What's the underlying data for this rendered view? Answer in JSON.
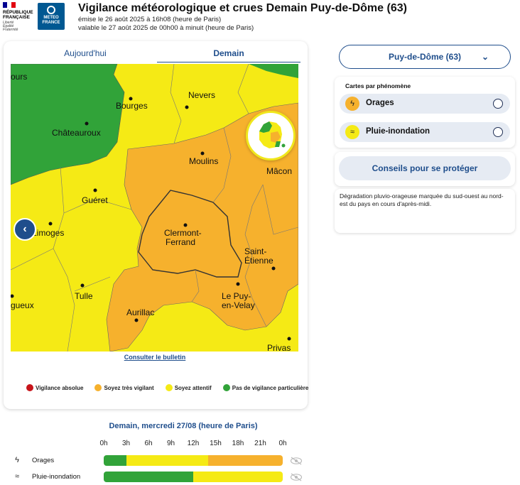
{
  "header": {
    "republic_line1": "RÉPUBLIQUE",
    "republic_line2": "FRANÇAISE",
    "motto": "Liberté Égalité Fraternité",
    "meteo_line1": "METEO",
    "meteo_line2": "FRANCE",
    "title": "Vigilance météorologique et crues Demain Puy-de-Dôme (63)",
    "emitted": "émise le 26 août 2025 à 16h08 (heure de Paris)",
    "valid": "valable le 27 août 2025 de 00h00 à minuit (heure de Paris)"
  },
  "tabs": [
    {
      "label": "Aujourd'hui",
      "active": false
    },
    {
      "label": "Demain",
      "active": true
    }
  ],
  "map": {
    "cities": {
      "tours": "ours",
      "nevers": "Nevers",
      "bourges": "Bourges",
      "chateauroux": "Châteauroux",
      "moulins": "Moulins",
      "macon": "Mâcon",
      "gueret": "Guéret",
      "limoges": "Limoges",
      "clermont1": "Clermont-",
      "clermont2": "Ferrand",
      "st_etienne1": "Saint-",
      "st_etienne2": "Étienne",
      "tulle": "Tulle",
      "perigueux": "gueux",
      "aurillac": "Aurillac",
      "le_puy1": "Le Puy-",
      "le_puy2": "en-Velay",
      "privas": "Privas"
    },
    "bulletin_link": "Consulter le bulletin"
  },
  "legend": [
    {
      "label": "Vigilance absolue",
      "color": "#c7141a"
    },
    {
      "label": "Soyez très vigilant",
      "color": "#f6b12d"
    },
    {
      "label": "Soyez attentif",
      "color": "#f5ea15"
    },
    {
      "label": "Pas de vigilance particulière",
      "color": "#31a339"
    }
  ],
  "colors": {
    "green": "#31a339",
    "yellow": "#f5ea15",
    "orange": "#f6b12d",
    "accent": "#1f4e8c"
  },
  "right_panel": {
    "department": "Puy-de-Dôme (63)",
    "phenomena_title": "Cartes par phénomène",
    "phenomena": [
      {
        "label": "Orages",
        "icon": "storm-icon",
        "color": "#f6b12d"
      },
      {
        "label": "Pluie-inondation",
        "icon": "rain-flood-icon",
        "color": "#f5ea15"
      }
    ],
    "conseils": "Conseils pour se protéger",
    "description": "Dégradation pluvio-orageuse marquée du sud-ouest au nord-est du pays en cours d'après-midi."
  },
  "timeline": {
    "title": "Demain, mercredi 27/08 (heure de Paris)",
    "hours": [
      "0h",
      "3h",
      "6h",
      "9h",
      "12h",
      "15h",
      "18h",
      "21h",
      "0h"
    ],
    "rows": [
      {
        "label": "Orages",
        "icon": "storm-icon",
        "segments": [
          {
            "from_hour": 0,
            "to_hour": 3,
            "level": "green"
          },
          {
            "from_hour": 3,
            "to_hour": 14,
            "level": "yellow"
          },
          {
            "from_hour": 14,
            "to_hour": 24,
            "level": "orange"
          }
        ]
      },
      {
        "label": "Pluie-inondation",
        "icon": "rain-flood-icon",
        "segments": [
          {
            "from_hour": 0,
            "to_hour": 12,
            "level": "green"
          },
          {
            "from_hour": 12,
            "to_hour": 24,
            "level": "yellow"
          }
        ]
      }
    ]
  }
}
